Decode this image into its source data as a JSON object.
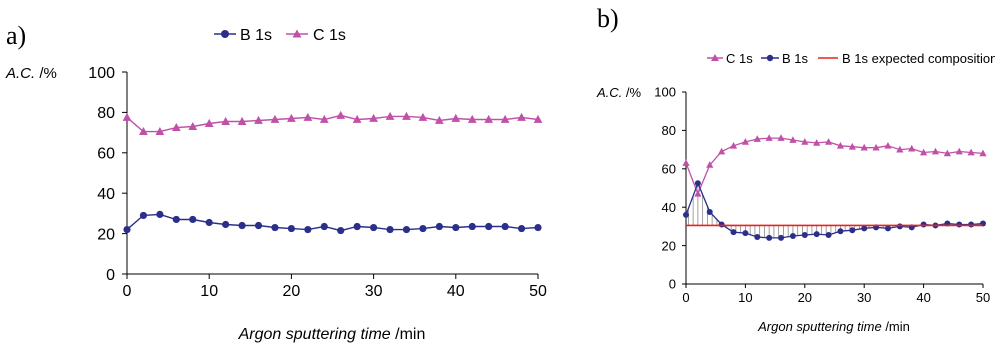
{
  "chart_data": [
    {
      "panel_label": "a)",
      "type": "line",
      "xlabel_italic": "Argon sputtering time",
      "xlabel_unit": " /min",
      "ylabel_italic": "A.C.",
      "ylabel_unit": " /%",
      "xlim": [
        0,
        50
      ],
      "ylim": [
        0,
        100
      ],
      "xticks": [
        0,
        10,
        20,
        30,
        40,
        50
      ],
      "yticks": [
        0,
        20,
        40,
        60,
        80,
        100
      ],
      "legend_position": "top",
      "series": [
        {
          "name": "B 1s",
          "color": "#2b2f8a",
          "marker": "circle",
          "x": [
            0,
            2,
            4,
            6,
            8,
            10,
            12,
            14,
            16,
            18,
            20,
            22,
            24,
            26,
            28,
            30,
            32,
            34,
            36,
            38,
            40,
            42,
            44,
            46,
            48,
            50
          ],
          "y": [
            22,
            29,
            29.5,
            27,
            27,
            25.5,
            24.5,
            24,
            24,
            23,
            22.5,
            22,
            23.5,
            21.5,
            23.5,
            23,
            22,
            22,
            22.5,
            23.5,
            23,
            23.5,
            23.5,
            23.5,
            22.5,
            23
          ]
        },
        {
          "name": "C 1s",
          "color": "#c050a8",
          "marker": "triangle",
          "x": [
            0,
            2,
            4,
            6,
            8,
            10,
            12,
            14,
            16,
            18,
            20,
            22,
            24,
            26,
            28,
            30,
            32,
            34,
            36,
            38,
            40,
            42,
            44,
            46,
            48,
            50
          ],
          "y": [
            77.5,
            70.5,
            70.5,
            72.5,
            73,
            74.5,
            75.5,
            75.5,
            76,
            76.5,
            77,
            77.5,
            76.5,
            78.5,
            76.5,
            77,
            78,
            78,
            77.5,
            76,
            77,
            76.5,
            76.5,
            76.5,
            77.5,
            76.5
          ]
        }
      ]
    },
    {
      "panel_label": "b)",
      "type": "line",
      "xlabel_italic": "Argon sputtering time",
      "xlabel_unit": " /min",
      "ylabel_italic": "A.C.",
      "ylabel_unit": " /%",
      "xlim": [
        0,
        50
      ],
      "ylim": [
        0,
        100
      ],
      "xticks": [
        0,
        10,
        20,
        30,
        40,
        50
      ],
      "yticks": [
        0,
        20,
        40,
        60,
        80,
        100
      ],
      "legend_position": "top",
      "series": [
        {
          "name": "C 1s",
          "color": "#c050a8",
          "marker": "triangle",
          "x": [
            0,
            2,
            4,
            6,
            8,
            10,
            12,
            14,
            16,
            18,
            20,
            22,
            24,
            26,
            28,
            30,
            32,
            34,
            36,
            38,
            40,
            42,
            44,
            46,
            48,
            50
          ],
          "y": [
            63,
            47,
            62,
            69,
            72,
            74,
            75.5,
            76,
            76,
            75,
            74,
            73.5,
            74,
            72,
            71.5,
            71,
            71,
            72,
            70,
            70.5,
            68.5,
            69,
            68,
            69,
            68.5,
            68
          ]
        },
        {
          "name": "B 1s",
          "color": "#2b2f8a",
          "marker": "circle",
          "x": [
            0,
            2,
            4,
            6,
            8,
            10,
            12,
            14,
            16,
            18,
            20,
            22,
            24,
            26,
            28,
            30,
            32,
            34,
            36,
            38,
            40,
            42,
            44,
            46,
            48,
            50
          ],
          "y": [
            36,
            52.5,
            37.5,
            31,
            27,
            26.5,
            24.5,
            24,
            24,
            25,
            25.5,
            26,
            25.5,
            27.5,
            28,
            29,
            29.5,
            29,
            30,
            29.5,
            31,
            30.5,
            31.5,
            31,
            31,
            31.5
          ]
        },
        {
          "name": "B 1s expected composition",
          "color": "#e8231c",
          "marker": "none",
          "x": [
            0,
            50
          ],
          "y": [
            30.5,
            30.5
          ]
        }
      ]
    }
  ]
}
